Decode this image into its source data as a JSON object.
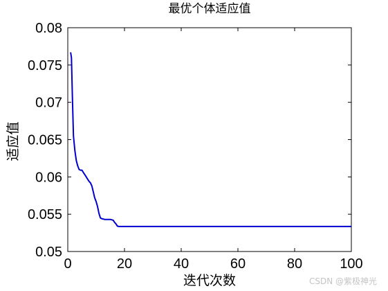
{
  "watermark": "CSDN @紫极神光",
  "chart_data": {
    "type": "line",
    "title": "最优个体适应值",
    "xlabel": "迭代次数",
    "ylabel": "适应值",
    "xlim": [
      0,
      100
    ],
    "ylim": [
      0.05,
      0.08
    ],
    "xticks": [
      "0",
      "20",
      "40",
      "60",
      "80",
      "100"
    ],
    "yticks": [
      "0.05",
      "0.055",
      "0.06",
      "0.065",
      "0.07",
      "0.075",
      "0.08"
    ],
    "grid": false,
    "line_color": "#0000cc",
    "series": [
      {
        "x": [
          1,
          1.3,
          1.6,
          2,
          2.5,
          3,
          3.5,
          4,
          4.5,
          5,
          5.5,
          6,
          6.5,
          7,
          7.5,
          8,
          8.5,
          9,
          9.5,
          10,
          10.5,
          11,
          11.5,
          12,
          13,
          14,
          15,
          16,
          16.5,
          17,
          17.5,
          18,
          20,
          30,
          40,
          50,
          60,
          70,
          80,
          90,
          100
        ],
        "y": [
          0.0767,
          0.076,
          0.071,
          0.0655,
          0.0635,
          0.0622,
          0.0615,
          0.061,
          0.0609,
          0.0609,
          0.0606,
          0.0603,
          0.06,
          0.0597,
          0.0594,
          0.0592,
          0.0588,
          0.058,
          0.0572,
          0.0567,
          0.056,
          0.0551,
          0.0545,
          0.0544,
          0.0543,
          0.0543,
          0.0543,
          0.0542,
          0.0539,
          0.0537,
          0.0534,
          0.05335,
          0.05335,
          0.05335,
          0.05335,
          0.05335,
          0.05335,
          0.05335,
          0.05335,
          0.05335,
          0.05335
        ]
      }
    ]
  }
}
